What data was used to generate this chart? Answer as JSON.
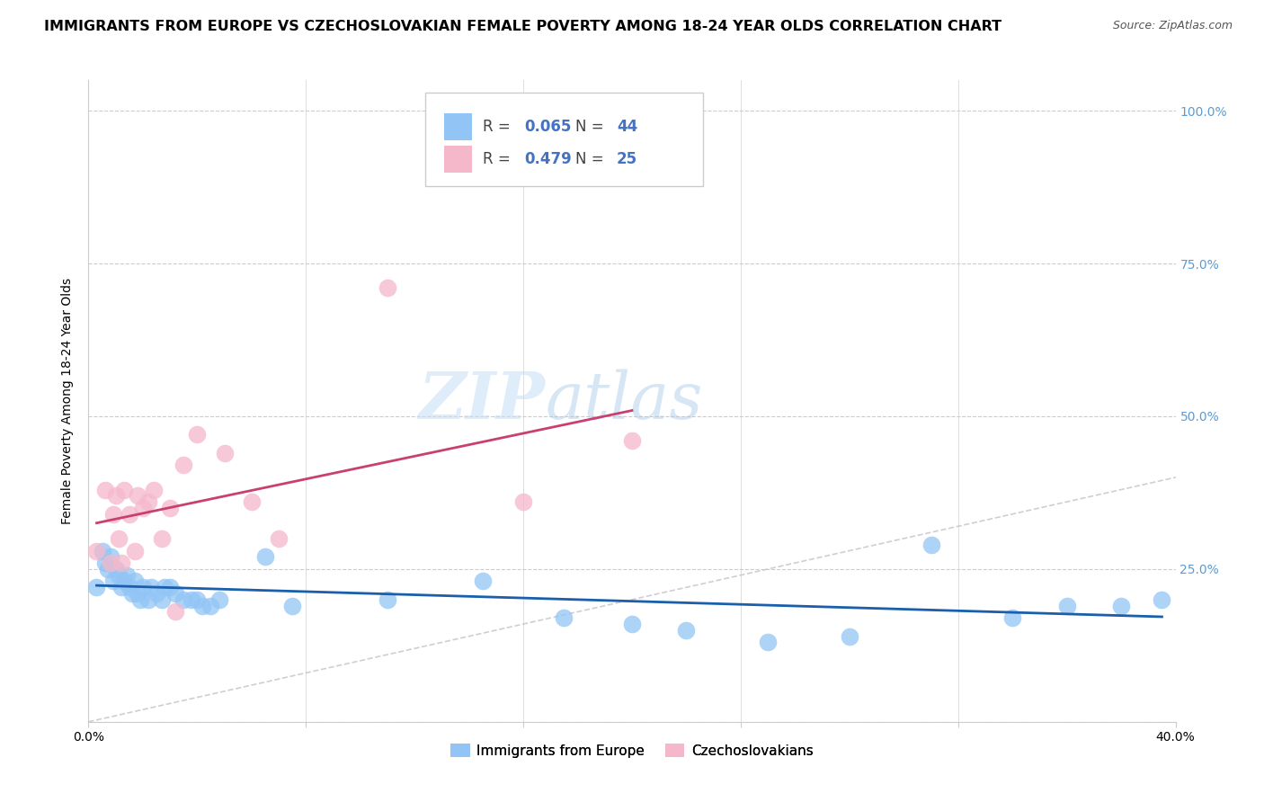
{
  "title": "IMMIGRANTS FROM EUROPE VS CZECHOSLOVAKIAN FEMALE POVERTY AMONG 18-24 YEAR OLDS CORRELATION CHART",
  "source": "Source: ZipAtlas.com",
  "ylabel": "Female Poverty Among 18-24 Year Olds",
  "xlim": [
    0.0,
    0.4
  ],
  "ylim": [
    0.0,
    1.05
  ],
  "color_blue": "#92C5F5",
  "color_pink": "#F5B8CB",
  "line_blue": "#1A5FAB",
  "line_pink": "#C94070",
  "line_diag": "#C8C0CC",
  "blue_x": [
    0.003,
    0.005,
    0.006,
    0.007,
    0.008,
    0.009,
    0.01,
    0.011,
    0.012,
    0.013,
    0.014,
    0.015,
    0.016,
    0.017,
    0.018,
    0.019,
    0.02,
    0.022,
    0.023,
    0.025,
    0.027,
    0.028,
    0.03,
    0.032,
    0.035,
    0.038,
    0.04,
    0.042,
    0.045,
    0.048,
    0.065,
    0.075,
    0.11,
    0.145,
    0.175,
    0.2,
    0.22,
    0.25,
    0.28,
    0.31,
    0.34,
    0.36,
    0.38,
    0.395
  ],
  "blue_y": [
    0.22,
    0.28,
    0.26,
    0.25,
    0.27,
    0.23,
    0.25,
    0.24,
    0.22,
    0.23,
    0.24,
    0.22,
    0.21,
    0.23,
    0.21,
    0.2,
    0.22,
    0.2,
    0.22,
    0.21,
    0.2,
    0.22,
    0.22,
    0.21,
    0.2,
    0.2,
    0.2,
    0.19,
    0.19,
    0.2,
    0.27,
    0.19,
    0.2,
    0.23,
    0.17,
    0.16,
    0.15,
    0.13,
    0.14,
    0.29,
    0.17,
    0.19,
    0.19,
    0.2
  ],
  "pink_x": [
    0.003,
    0.006,
    0.008,
    0.009,
    0.01,
    0.011,
    0.012,
    0.013,
    0.015,
    0.017,
    0.018,
    0.02,
    0.022,
    0.024,
    0.027,
    0.03,
    0.032,
    0.035,
    0.04,
    0.05,
    0.06,
    0.07,
    0.11,
    0.16,
    0.2
  ],
  "pink_y": [
    0.28,
    0.38,
    0.26,
    0.34,
    0.37,
    0.3,
    0.26,
    0.38,
    0.34,
    0.28,
    0.37,
    0.35,
    0.36,
    0.38,
    0.3,
    0.35,
    0.18,
    0.42,
    0.47,
    0.44,
    0.36,
    0.3,
    0.71,
    0.36,
    0.46
  ],
  "title_fontsize": 11.5,
  "source_fontsize": 9,
  "axis_label_fontsize": 10,
  "tick_fontsize": 10,
  "legend_color_r": "#4472C4",
  "legend_color_n": "#4472C4",
  "legend_r1_val": "0.065",
  "legend_n1_val": "44",
  "legend_r2_val": "0.479",
  "legend_n2_val": "25",
  "watermark": "ZIPatlas"
}
